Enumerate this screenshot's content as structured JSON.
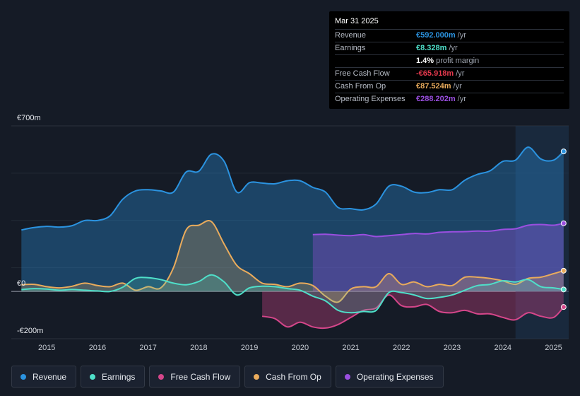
{
  "chart_data": {
    "type": "area",
    "title": "",
    "xlabel": "",
    "ylabel": "",
    "ylim": [
      -200,
      700
    ],
    "y_ticks": [
      {
        "value": 700,
        "label": "€700m"
      },
      {
        "value": 0,
        "label": "€0"
      },
      {
        "value": -200,
        "label": "-€200m"
      }
    ],
    "x_ticks": [
      "2015",
      "2016",
      "2017",
      "2018",
      "2019",
      "2020",
      "2021",
      "2022",
      "2023",
      "2024",
      "2025"
    ],
    "x_range": [
      2014.3,
      2025.3
    ],
    "highlight_from": 2024.25,
    "series": [
      {
        "key": "revenue",
        "name": "Revenue",
        "color": "#2b93e0",
        "points": [
          [
            2014.5,
            260
          ],
          [
            2014.75,
            270
          ],
          [
            2015,
            275
          ],
          [
            2015.25,
            272
          ],
          [
            2015.5,
            278
          ],
          [
            2015.75,
            300
          ],
          [
            2016,
            300
          ],
          [
            2016.25,
            320
          ],
          [
            2016.5,
            390
          ],
          [
            2016.75,
            425
          ],
          [
            2017,
            430
          ],
          [
            2017.25,
            425
          ],
          [
            2017.5,
            420
          ],
          [
            2017.75,
            505
          ],
          [
            2018,
            508
          ],
          [
            2018.25,
            580
          ],
          [
            2018.5,
            550
          ],
          [
            2018.75,
            420
          ],
          [
            2019,
            460
          ],
          [
            2019.25,
            458
          ],
          [
            2019.5,
            455
          ],
          [
            2019.75,
            468
          ],
          [
            2020,
            468
          ],
          [
            2020.25,
            440
          ],
          [
            2020.5,
            420
          ],
          [
            2020.75,
            355
          ],
          [
            2021,
            350
          ],
          [
            2021.25,
            345
          ],
          [
            2021.5,
            370
          ],
          [
            2021.75,
            445
          ],
          [
            2022,
            445
          ],
          [
            2022.25,
            420
          ],
          [
            2022.5,
            418
          ],
          [
            2022.75,
            430
          ],
          [
            2023,
            430
          ],
          [
            2023.25,
            470
          ],
          [
            2023.5,
            495
          ],
          [
            2023.75,
            510
          ],
          [
            2024,
            550
          ],
          [
            2024.25,
            555
          ],
          [
            2024.5,
            610
          ],
          [
            2024.75,
            560
          ],
          [
            2025,
            555
          ],
          [
            2025.2,
            592
          ]
        ]
      },
      {
        "key": "earnings",
        "name": "Earnings",
        "color": "#4fdfc9",
        "points": [
          [
            2014.5,
            8
          ],
          [
            2014.75,
            12
          ],
          [
            2015,
            10
          ],
          [
            2015.25,
            5
          ],
          [
            2015.5,
            8
          ],
          [
            2015.75,
            5
          ],
          [
            2016,
            2
          ],
          [
            2016.25,
            0
          ],
          [
            2016.5,
            18
          ],
          [
            2016.75,
            55
          ],
          [
            2017,
            58
          ],
          [
            2017.25,
            50
          ],
          [
            2017.5,
            35
          ],
          [
            2017.75,
            28
          ],
          [
            2018,
            42
          ],
          [
            2018.25,
            70
          ],
          [
            2018.5,
            40
          ],
          [
            2018.75,
            -15
          ],
          [
            2019,
            15
          ],
          [
            2019.25,
            22
          ],
          [
            2019.5,
            20
          ],
          [
            2019.75,
            12
          ],
          [
            2020,
            5
          ],
          [
            2020.25,
            -20
          ],
          [
            2020.5,
            -40
          ],
          [
            2020.75,
            -80
          ],
          [
            2021,
            -90
          ],
          [
            2021.25,
            -85
          ],
          [
            2021.5,
            -80
          ],
          [
            2021.75,
            -5
          ],
          [
            2022,
            -5
          ],
          [
            2022.25,
            -15
          ],
          [
            2022.5,
            -30
          ],
          [
            2022.75,
            -25
          ],
          [
            2023,
            -15
          ],
          [
            2023.25,
            5
          ],
          [
            2023.5,
            25
          ],
          [
            2023.75,
            30
          ],
          [
            2024,
            45
          ],
          [
            2024.25,
            40
          ],
          [
            2024.5,
            50
          ],
          [
            2024.75,
            20
          ],
          [
            2025,
            15
          ],
          [
            2025.2,
            8.328
          ]
        ]
      },
      {
        "key": "fcf",
        "name": "Free Cash Flow",
        "color": "#d5468a",
        "points": [
          [
            2019.25,
            -105
          ],
          [
            2019.5,
            -115
          ],
          [
            2019.75,
            -150
          ],
          [
            2020,
            -130
          ],
          [
            2020.25,
            -150
          ],
          [
            2020.5,
            -155
          ],
          [
            2020.75,
            -140
          ],
          [
            2021,
            -110
          ],
          [
            2021.25,
            -80
          ],
          [
            2021.5,
            -70
          ],
          [
            2021.75,
            -15
          ],
          [
            2022,
            -60
          ],
          [
            2022.25,
            -65
          ],
          [
            2022.5,
            -55
          ],
          [
            2022.75,
            -85
          ],
          [
            2023,
            -90
          ],
          [
            2023.25,
            -80
          ],
          [
            2023.5,
            -95
          ],
          [
            2023.75,
            -95
          ],
          [
            2024,
            -110
          ],
          [
            2024.25,
            -120
          ],
          [
            2024.5,
            -90
          ],
          [
            2024.75,
            -105
          ],
          [
            2025,
            -110
          ],
          [
            2025.2,
            -65.918
          ]
        ]
      },
      {
        "key": "cfo",
        "name": "Cash From Op",
        "color": "#e9ab5c",
        "points": [
          [
            2014.5,
            28
          ],
          [
            2014.75,
            30
          ],
          [
            2015,
            20
          ],
          [
            2015.25,
            15
          ],
          [
            2015.5,
            22
          ],
          [
            2015.75,
            35
          ],
          [
            2016,
            25
          ],
          [
            2016.25,
            20
          ],
          [
            2016.5,
            35
          ],
          [
            2016.75,
            5
          ],
          [
            2017,
            20
          ],
          [
            2017.25,
            15
          ],
          [
            2017.5,
            100
          ],
          [
            2017.75,
            260
          ],
          [
            2018,
            280
          ],
          [
            2018.25,
            295
          ],
          [
            2018.5,
            200
          ],
          [
            2018.75,
            110
          ],
          [
            2019,
            75
          ],
          [
            2019.25,
            35
          ],
          [
            2019.5,
            30
          ],
          [
            2019.75,
            20
          ],
          [
            2020,
            35
          ],
          [
            2020.25,
            25
          ],
          [
            2020.5,
            -20
          ],
          [
            2020.75,
            -45
          ],
          [
            2021,
            10
          ],
          [
            2021.25,
            20
          ],
          [
            2021.5,
            20
          ],
          [
            2021.75,
            75
          ],
          [
            2022,
            30
          ],
          [
            2022.25,
            40
          ],
          [
            2022.5,
            20
          ],
          [
            2022.75,
            30
          ],
          [
            2023,
            25
          ],
          [
            2023.25,
            60
          ],
          [
            2023.5,
            60
          ],
          [
            2023.75,
            55
          ],
          [
            2024,
            45
          ],
          [
            2024.25,
            30
          ],
          [
            2024.5,
            55
          ],
          [
            2024.75,
            60
          ],
          [
            2025,
            75
          ],
          [
            2025.2,
            87.524
          ]
        ]
      },
      {
        "key": "opex",
        "name": "Operating Expenses",
        "color": "#9a4fe0",
        "points": [
          [
            2020.25,
            240
          ],
          [
            2020.5,
            242
          ],
          [
            2020.75,
            238
          ],
          [
            2021,
            236
          ],
          [
            2021.25,
            240
          ],
          [
            2021.5,
            232
          ],
          [
            2021.75,
            236
          ],
          [
            2022,
            240
          ],
          [
            2022.25,
            245
          ],
          [
            2022.5,
            243
          ],
          [
            2022.75,
            250
          ],
          [
            2023,
            252
          ],
          [
            2023.25,
            253
          ],
          [
            2023.5,
            255
          ],
          [
            2023.75,
            255
          ],
          [
            2024,
            262
          ],
          [
            2024.25,
            265
          ],
          [
            2024.5,
            280
          ],
          [
            2024.75,
            283
          ],
          [
            2025,
            280
          ],
          [
            2025.2,
            288.202
          ]
        ]
      }
    ]
  },
  "tooltip": {
    "date": "Mar 31 2025",
    "rows": [
      {
        "label": "Revenue",
        "value": "€592.000m",
        "unit": "/yr",
        "color": "#2b93e0"
      },
      {
        "label": "Earnings",
        "value": "€8.328m",
        "unit": "/yr",
        "color": "#4fdfc9"
      },
      {
        "label": "",
        "value": "1.4%",
        "unit": "profit margin",
        "color": "#ffffff"
      },
      {
        "label": "Free Cash Flow",
        "value": "-€65.918m",
        "unit": "/yr",
        "color": "#e5394d"
      },
      {
        "label": "Cash From Op",
        "value": "€87.524m",
        "unit": "/yr",
        "color": "#e9ab5c"
      },
      {
        "label": "Operating Expenses",
        "value": "€288.202m",
        "unit": "/yr",
        "color": "#9a4fe0"
      }
    ]
  },
  "legend": [
    {
      "label": "Revenue",
      "color": "#2b93e0",
      "icon": "circle-dot-icon"
    },
    {
      "label": "Earnings",
      "color": "#4fdfc9",
      "icon": "circle-dot-icon"
    },
    {
      "label": "Free Cash Flow",
      "color": "#d5468a",
      "icon": "circle-dot-icon"
    },
    {
      "label": "Cash From Op",
      "color": "#e9ab5c",
      "icon": "circle-dot-icon"
    },
    {
      "label": "Operating Expenses",
      "color": "#9a4fe0",
      "icon": "circle-dot-icon"
    }
  ]
}
